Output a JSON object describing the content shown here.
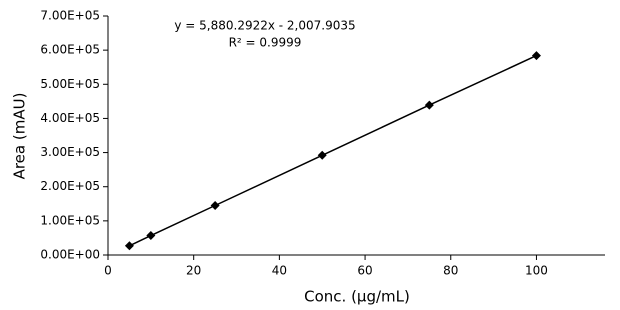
{
  "chart_data": {
    "type": "scatter",
    "x_label": "Conc. (µg/mL)",
    "y_label": "Area (mAU)",
    "annotations": [
      "y = 5,880.2922x - 2,007.9035",
      "R² = 0.9999"
    ],
    "x": [
      5,
      10,
      25,
      50,
      75,
      100
    ],
    "series": [
      {
        "color": "#000000",
        "values": [
          27000,
          57000,
          145000,
          292000,
          439000,
          584000
        ]
      }
    ],
    "xlim": [
      0,
      116
    ],
    "xticks": [
      0,
      20,
      40,
      60,
      80,
      100
    ],
    "ylim": [
      0,
      700000
    ],
    "yticks": [
      {
        "value": 0,
        "label": "0.00E+00"
      },
      {
        "value": 100000,
        "label": "1.00E+05"
      },
      {
        "value": 200000,
        "label": "2.00E+05"
      },
      {
        "value": 300000,
        "label": "3.00E+05"
      },
      {
        "value": 400000,
        "label": "4.00E+05"
      },
      {
        "value": 500000,
        "label": "5.00E+05"
      },
      {
        "value": 600000,
        "label": "6.00E+05"
      },
      {
        "value": 700000,
        "label": "7.00E+05"
      }
    ],
    "grid": false
  }
}
